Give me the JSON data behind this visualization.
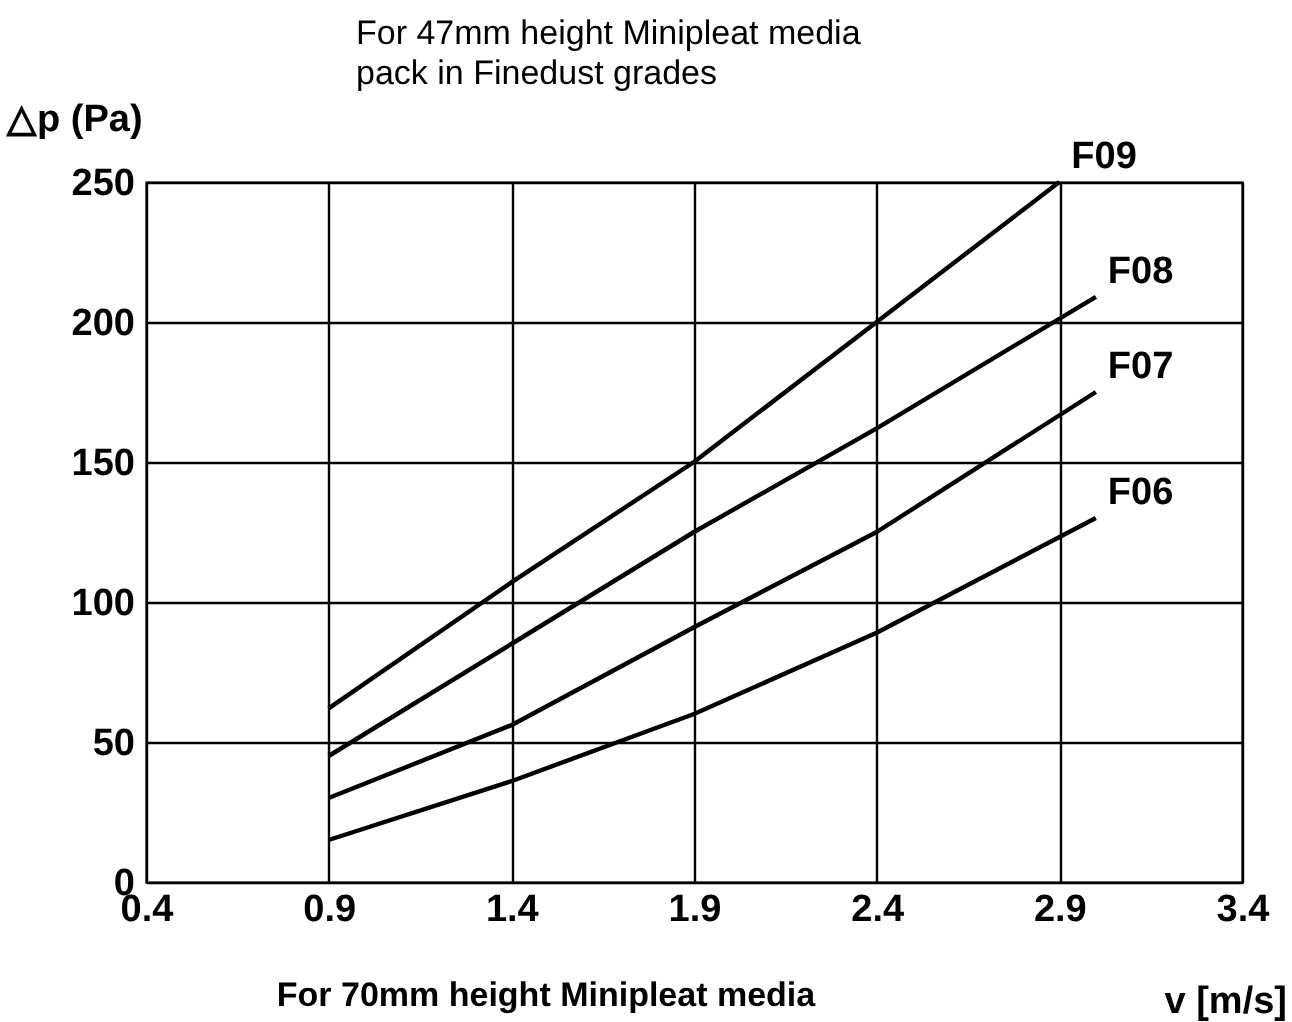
{
  "chart_data": {
    "type": "line",
    "title": [
      "For 47mm height Minipleat media",
      "pack in Finedust grades"
    ],
    "xlabel": "v [m/s]",
    "ylabel": "△p (Pa)",
    "x": [
      0.9,
      1.4,
      1.9,
      2.4,
      3.0
    ],
    "series": [
      {
        "name": "F09",
        "color": "#000000",
        "x": [
          0.9,
          1.4,
          1.9,
          2.4,
          2.9
        ],
        "values": [
          62,
          107,
          150,
          200,
          250
        ]
      },
      {
        "name": "F08",
        "color": "#000000",
        "values": [
          45,
          85,
          125,
          162,
          209
        ]
      },
      {
        "name": "F07",
        "color": "#000000",
        "values": [
          30,
          56,
          91,
          125,
          175
        ]
      },
      {
        "name": "F06",
        "color": "#000000",
        "values": [
          15,
          36,
          60,
          89,
          130
        ]
      }
    ],
    "xlim": [
      0.4,
      3.4
    ],
    "xticks": [
      0.4,
      0.9,
      1.4,
      1.9,
      2.4,
      2.9,
      3.4
    ],
    "ylim": [
      0,
      250
    ],
    "yticks": [
      0,
      50,
      100,
      150,
      200,
      250
    ],
    "grid": true,
    "marker": "none",
    "line_style": "solid",
    "legend": false,
    "annotations": [
      "For 70mm height Minipleat media"
    ]
  }
}
